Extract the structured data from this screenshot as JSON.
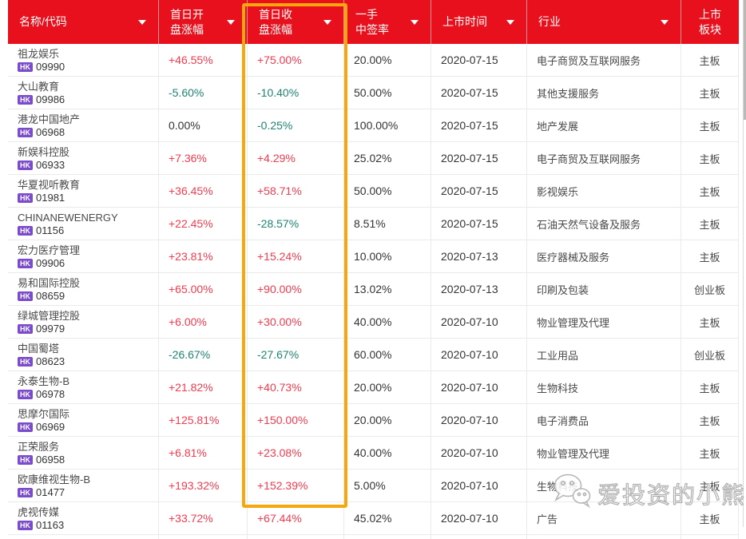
{
  "header": {
    "columns": [
      {
        "id": "name-code",
        "label": "名称/代码",
        "lines": [
          "名称/代码"
        ],
        "sortable": true,
        "center": false
      },
      {
        "id": "open-change",
        "label": "首日开盘涨幅",
        "lines": [
          "首日开",
          "盘涨幅"
        ],
        "sortable": true,
        "center": false
      },
      {
        "id": "close-change",
        "label": "首日收盘涨幅",
        "lines": [
          "首日收",
          "盘涨幅"
        ],
        "sortable": true,
        "center": false,
        "highlighted": true
      },
      {
        "id": "win-rate",
        "label": "一手中签率",
        "lines": [
          "一手",
          "中签率"
        ],
        "sortable": true,
        "center": false
      },
      {
        "id": "list-date",
        "label": "上市时间",
        "lines": [
          "上市时间"
        ],
        "sortable": true,
        "center": false
      },
      {
        "id": "industry",
        "label": "行业",
        "lines": [
          "行业"
        ],
        "sortable": true,
        "center": false
      },
      {
        "id": "board",
        "label": "上市板块",
        "lines": [
          "上市",
          "板块"
        ],
        "sortable": false,
        "center": true
      }
    ]
  },
  "rows": [
    {
      "name": "祖龙娱乐",
      "market": "HK",
      "code": "09990",
      "open_chg": "+46.55%",
      "open_dir": "up",
      "close_chg": "+75.00%",
      "close_dir": "up",
      "win_rate": "20.00%",
      "list_date": "2020-07-15",
      "industry": "电子商贸及互联网服务",
      "board": "主板"
    },
    {
      "name": "大山教育",
      "market": "HK",
      "code": "09986",
      "open_chg": "-5.60%",
      "open_dir": "down",
      "close_chg": "-10.40%",
      "close_dir": "down",
      "win_rate": "50.00%",
      "list_date": "2020-07-15",
      "industry": "其他支援服务",
      "board": "主板"
    },
    {
      "name": "港龙中国地产",
      "market": "HK",
      "code": "06968",
      "open_chg": "0.00%",
      "open_dir": "flat",
      "close_chg": "-0.25%",
      "close_dir": "down",
      "win_rate": "100.00%",
      "list_date": "2020-07-15",
      "industry": "地产发展",
      "board": "主板"
    },
    {
      "name": "新娱科控股",
      "market": "HK",
      "code": "06933",
      "open_chg": "+7.36%",
      "open_dir": "up",
      "close_chg": "+4.29%",
      "close_dir": "up",
      "win_rate": "25.02%",
      "list_date": "2020-07-15",
      "industry": "电子商贸及互联网服务",
      "board": "主板"
    },
    {
      "name": "华夏视听教育",
      "market": "HK",
      "code": "01981",
      "open_chg": "+36.45%",
      "open_dir": "up",
      "close_chg": "+58.71%",
      "close_dir": "up",
      "win_rate": "50.00%",
      "list_date": "2020-07-15",
      "industry": "影视娱乐",
      "board": "主板"
    },
    {
      "name": "CHINANEWENERGY",
      "market": "HK",
      "code": "01156",
      "open_chg": "+22.45%",
      "open_dir": "up",
      "close_chg": "-28.57%",
      "close_dir": "down",
      "win_rate": "8.51%",
      "list_date": "2020-07-15",
      "industry": "石油天然气设备及服务",
      "board": "主板"
    },
    {
      "name": "宏力医疗管理",
      "market": "HK",
      "code": "09906",
      "open_chg": "+23.81%",
      "open_dir": "up",
      "close_chg": "+15.24%",
      "close_dir": "up",
      "win_rate": "10.00%",
      "list_date": "2020-07-13",
      "industry": "医疗器械及服务",
      "board": "主板"
    },
    {
      "name": "易和国际控股",
      "market": "HK",
      "code": "08659",
      "open_chg": "+65.00%",
      "open_dir": "up",
      "close_chg": "+90.00%",
      "close_dir": "up",
      "win_rate": "13.02%",
      "list_date": "2020-07-13",
      "industry": "印刷及包装",
      "board": "创业板"
    },
    {
      "name": "绿城管理控股",
      "market": "HK",
      "code": "09979",
      "open_chg": "+6.00%",
      "open_dir": "up",
      "close_chg": "+30.00%",
      "close_dir": "up",
      "win_rate": "40.00%",
      "list_date": "2020-07-10",
      "industry": "物业管理及代理",
      "board": "主板"
    },
    {
      "name": "中国蜀塔",
      "market": "HK",
      "code": "08623",
      "open_chg": "-26.67%",
      "open_dir": "down",
      "close_chg": "-27.67%",
      "close_dir": "down",
      "win_rate": "60.00%",
      "list_date": "2020-07-10",
      "industry": "工业用品",
      "board": "创业板"
    },
    {
      "name": "永泰生物-B",
      "market": "HK",
      "code": "06978",
      "open_chg": "+21.82%",
      "open_dir": "up",
      "close_chg": "+40.73%",
      "close_dir": "up",
      "win_rate": "20.00%",
      "list_date": "2020-07-10",
      "industry": "生物科技",
      "board": "主板"
    },
    {
      "name": "思摩尔国际",
      "market": "HK",
      "code": "06969",
      "open_chg": "+125.81%",
      "open_dir": "up",
      "close_chg": "+150.00%",
      "close_dir": "up",
      "win_rate": "20.00%",
      "list_date": "2020-07-10",
      "industry": "电子消费品",
      "board": "主板"
    },
    {
      "name": "正荣服务",
      "market": "HK",
      "code": "06958",
      "open_chg": "+6.81%",
      "open_dir": "up",
      "close_chg": "+23.08%",
      "close_dir": "up",
      "win_rate": "40.00%",
      "list_date": "2020-07-10",
      "industry": "物业管理及代理",
      "board": "主板"
    },
    {
      "name": "欧康维视生物-B",
      "market": "HK",
      "code": "01477",
      "open_chg": "+193.32%",
      "open_dir": "up",
      "close_chg": "+152.39%",
      "close_dir": "up",
      "win_rate": "5.00%",
      "list_date": "2020-07-10",
      "industry": "生物科技",
      "board": "主板"
    },
    {
      "name": "虎视传媒",
      "market": "HK",
      "code": "01163",
      "open_chg": "+33.72%",
      "open_dir": "up",
      "close_chg": "+67.44%",
      "close_dir": "up",
      "win_rate": "45.02%",
      "list_date": "2020-07-10",
      "industry": "广告",
      "board": "主板"
    }
  ],
  "watermark": {
    "text": "爱投资的小熊猫"
  },
  "colors": {
    "header_bg": "#E8101C",
    "up": "#F43B4F",
    "down": "#1F8373",
    "flat": "#333333",
    "hk_badge": "#7A4BCD",
    "highlight_box": "#F5A70B"
  }
}
